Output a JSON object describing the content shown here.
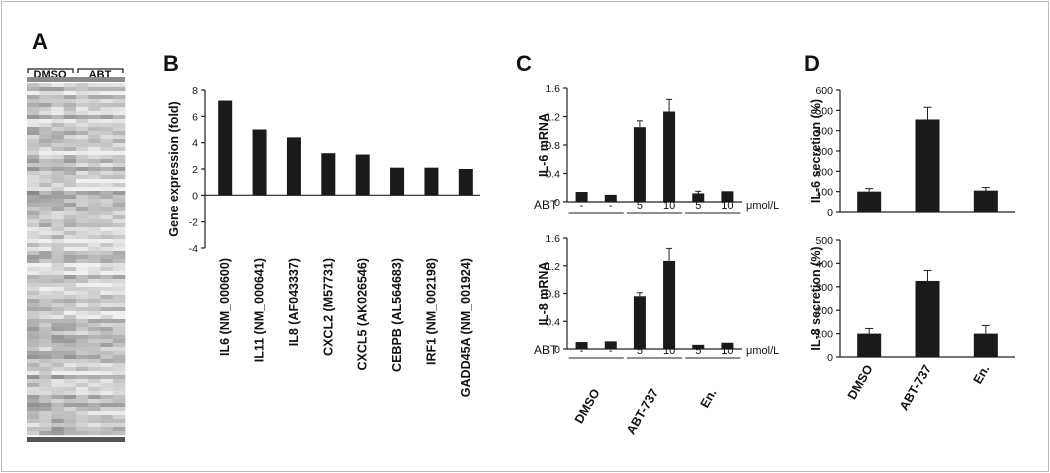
{
  "panels": {
    "A": "A",
    "B": "B",
    "C": "C",
    "D": "D"
  },
  "heatmap": {
    "groups": [
      "DMSO",
      "ABT"
    ]
  },
  "colors": {
    "bar": "#1a1a1a",
    "axis": "#222222"
  },
  "chart_data": [
    {
      "panel": "B",
      "type": "bar",
      "ylabel": "Gene expression (fold)",
      "ylim": [
        -4,
        8
      ],
      "yticks": [
        -4,
        -2,
        0,
        2,
        4,
        6,
        8
      ],
      "categories": [
        "IL6 (NM_000600)",
        "IL11 (NM_000641)",
        "IL8 (AF043337)",
        "CXCL2 (M57731)",
        "CXCL5 (AK026546)",
        "CEBPB (AL564683)",
        "IRF1 (NM_002198)",
        "GADD45A (NM_001924)"
      ],
      "values": [
        7.2,
        5.0,
        4.4,
        3.2,
        3.1,
        2.1,
        2.1,
        2.0
      ]
    },
    {
      "panel": "C-top",
      "type": "bar",
      "ylabel": "IL-6 mRNA",
      "ylim": [
        0,
        1.6
      ],
      "yticks": [
        "0",
        "0.4",
        "0.8",
        "1.2",
        "1.6"
      ],
      "treatments": [
        "DMSO",
        "ABT-737",
        "En."
      ],
      "abt_label": "ABT",
      "unit": "μmol/L",
      "doses": [
        "-",
        "-",
        "5",
        "10",
        "5",
        "10"
      ],
      "values": [
        0.14,
        0.1,
        1.05,
        1.27,
        0.12,
        0.15
      ],
      "errors": [
        0.01,
        0.01,
        0.09,
        0.17,
        0.03,
        0.02
      ]
    },
    {
      "panel": "C-bottom",
      "type": "bar",
      "ylabel": "IL-8 mRNA",
      "ylim": [
        0,
        1.6
      ],
      "yticks": [
        "0",
        "0.4",
        "0.8",
        "1.2",
        "1.6"
      ],
      "treatments": [
        "DMSO",
        "ABT-737",
        "En."
      ],
      "abt_label": "ABT",
      "unit": "μmol/L",
      "doses": [
        "-",
        "-",
        "5",
        "10",
        "5",
        "10"
      ],
      "values": [
        0.1,
        0.11,
        0.76,
        1.27,
        0.06,
        0.09
      ],
      "errors": [
        0.01,
        0.01,
        0.05,
        0.18,
        0.01,
        0.01
      ]
    },
    {
      "panel": "D-top",
      "type": "bar",
      "ylabel": "IL-6 secretion (%)",
      "ylim": [
        0,
        600
      ],
      "yticks": [
        "0",
        "100",
        "200",
        "300",
        "400",
        "500",
        "600"
      ],
      "categories": [
        "DMSO",
        "ABT-737",
        "En."
      ],
      "values": [
        100,
        455,
        105
      ],
      "errors": [
        15,
        60,
        15
      ]
    },
    {
      "panel": "D-bottom",
      "type": "bar",
      "ylabel": "IL-8 secretion (%)",
      "ylim": [
        0,
        500
      ],
      "yticks": [
        "0",
        "100",
        "200",
        "300",
        "400",
        "500"
      ],
      "categories": [
        "DMSO",
        "ABT-737",
        "En."
      ],
      "values": [
        100,
        325,
        100
      ],
      "errors": [
        22,
        45,
        35
      ]
    }
  ]
}
